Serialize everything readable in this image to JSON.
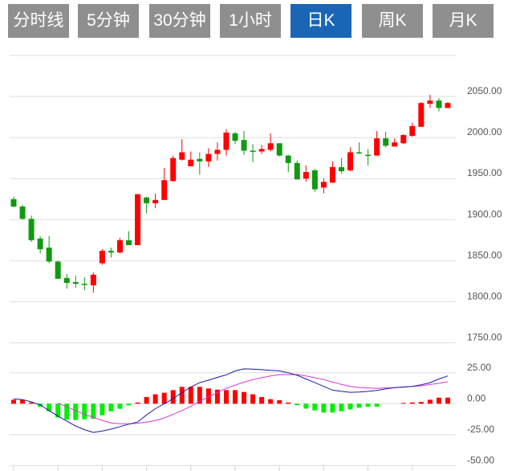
{
  "tabs": [
    {
      "label": "分时线",
      "active": false
    },
    {
      "label": "5分钟",
      "active": false
    },
    {
      "label": "30分钟",
      "active": false
    },
    {
      "label": "1小时",
      "active": false
    },
    {
      "label": "日K",
      "active": true
    },
    {
      "label": "周K",
      "active": false
    },
    {
      "label": "月K",
      "active": false
    }
  ],
  "colors": {
    "up": "#ff0000",
    "down": "#119911",
    "hist_up": "#ff0000",
    "hist_down": "#00ee00",
    "dif": "#1a1aa6",
    "dea": "#dd33dd",
    "active_tab": "#1a66b5",
    "tab": "#8f8f8f"
  },
  "chart_data": [
    {
      "type": "candlestick",
      "title": "",
      "ylim": [
        1750,
        2100
      ],
      "y_ticks": [
        "2050.00",
        "2000.00",
        "1950.00",
        "1900.00",
        "1850.00",
        "1800.00",
        "1750.00"
      ],
      "y_tick_values": [
        2050,
        2000,
        1950,
        1900,
        1850,
        1800,
        1750
      ],
      "grid": true,
      "ohlc": [
        [
          1925,
          1916,
          1928,
          1915
        ],
        [
          1916,
          1901,
          1918,
          1900
        ],
        [
          1901,
          1875,
          1905,
          1873
        ],
        [
          1877,
          1864,
          1880,
          1859
        ],
        [
          1866,
          1849,
          1880,
          1847
        ],
        [
          1849,
          1828,
          1850,
          1828
        ],
        [
          1829,
          1823,
          1834,
          1816
        ],
        [
          1824,
          1822,
          1832,
          1817
        ],
        [
          1822,
          1821,
          1830,
          1814
        ],
        [
          1820,
          1833,
          1836,
          1811
        ],
        [
          1847,
          1862,
          1864,
          1845
        ],
        [
          1862,
          1860,
          1866,
          1854
        ],
        [
          1860,
          1875,
          1878,
          1859
        ],
        [
          1875,
          1869,
          1886,
          1869
        ],
        [
          1869,
          1931,
          1931,
          1869
        ],
        [
          1927,
          1920,
          1928,
          1908
        ],
        [
          1920,
          1924,
          1932,
          1914
        ],
        [
          1924,
          1948,
          1963,
          1924
        ],
        [
          1947,
          1975,
          1978,
          1946
        ],
        [
          1973,
          1982,
          1998,
          1972
        ],
        [
          1965,
          1973,
          1983,
          1965
        ],
        [
          1974,
          1971,
          1982,
          1955
        ],
        [
          1971,
          1980,
          1987,
          1964
        ],
        [
          1980,
          1985,
          1994,
          1972
        ],
        [
          1985,
          2006,
          2010,
          1978
        ],
        [
          2005,
          1996,
          2007,
          1992
        ],
        [
          1997,
          1984,
          2008,
          1979
        ],
        [
          1984,
          1983,
          1992,
          1970
        ],
        [
          1983,
          1986,
          1991,
          1980
        ],
        [
          1985,
          1993,
          2005,
          1983
        ],
        [
          1993,
          1978,
          1993,
          1977
        ],
        [
          1978,
          1969,
          1979,
          1958
        ],
        [
          1969,
          1949,
          1972,
          1949
        ],
        [
          1950,
          1958,
          1966,
          1946
        ],
        [
          1960,
          1937,
          1962,
          1934
        ],
        [
          1939,
          1946,
          1950,
          1932
        ],
        [
          1945,
          1964,
          1971,
          1945
        ],
        [
          1964,
          1959,
          1975,
          1956
        ],
        [
          1960,
          1982,
          1988,
          1959
        ],
        [
          1982,
          1981,
          1994,
          1980
        ],
        [
          1979,
          1978,
          1986,
          1966
        ],
        [
          1978,
          1999,
          2008,
          1978
        ],
        [
          1999,
          1990,
          2007,
          1988
        ],
        [
          1989,
          1994,
          1999,
          1989
        ],
        [
          1993,
          2003,
          2004,
          1992
        ],
        [
          2002,
          2014,
          2018,
          2001
        ],
        [
          2013,
          2042,
          2043,
          2013
        ],
        [
          2041,
          2045,
          2052,
          2036
        ],
        [
          2045,
          2036,
          2048,
          2032
        ],
        [
          2036,
          2042,
          2043,
          2036
        ]
      ]
    },
    {
      "type": "macd",
      "ylim": [
        -50,
        25
      ],
      "y_ticks": [
        "25.00",
        "0.00",
        "-25.00",
        "-50.00"
      ],
      "y_tick_values": [
        25,
        0,
        -25,
        -50
      ],
      "histogram": [
        3.2,
        3.2,
        1,
        -2.4,
        -6.1,
        -11.1,
        -12.8,
        -13.2,
        -12.6,
        -12.1,
        -9.3,
        -6.1,
        -4.1,
        -1.3,
        1,
        5.4,
        7.6,
        8.9,
        11,
        13.6,
        13.6,
        13.6,
        12.3,
        11.4,
        11,
        11,
        9.5,
        7.6,
        5.4,
        3.7,
        2.8,
        1,
        -1.1,
        -3.9,
        -5.4,
        -7.1,
        -7.1,
        -6.1,
        -4.6,
        -3.2,
        -2.4,
        -2.4,
        0,
        0,
        0.6,
        1,
        1.5,
        3.2,
        4.9,
        4.9
      ],
      "dif": [
        4,
        3.3,
        1.5,
        -1,
        -5.5,
        -10,
        -14,
        -18,
        -21,
        -23.2,
        -22,
        -20.5,
        -18.5,
        -16.5,
        -14.8,
        -9,
        -4,
        0,
        4,
        9,
        13.5,
        17,
        19,
        21.3,
        23.3,
        26.5,
        28.2,
        28,
        27.5,
        27,
        26.5,
        25,
        23,
        20,
        17,
        14,
        11,
        10,
        9.2,
        9.5,
        10,
        10.8,
        12,
        13,
        13.5,
        14,
        15.3,
        17,
        20,
        22.5
      ],
      "dea": [
        null,
        null,
        null,
        null,
        null,
        0.6,
        -2.5,
        -5.5,
        -8.5,
        -11,
        -13.5,
        -15.5,
        -16.2,
        -16.2,
        -15.8,
        -14.8,
        -13.6,
        -11.5,
        -8.5,
        -5.5,
        -2,
        2,
        5.5,
        9,
        12.5,
        15,
        17.5,
        19.5,
        21,
        22.5,
        23.5,
        23.6,
        23.6,
        22.5,
        21,
        19.5,
        17.5,
        15.6,
        14,
        13,
        12.7,
        12.5,
        12.7,
        13,
        13.3,
        14,
        14.5,
        15.5,
        16.5,
        17.7
      ]
    }
  ]
}
